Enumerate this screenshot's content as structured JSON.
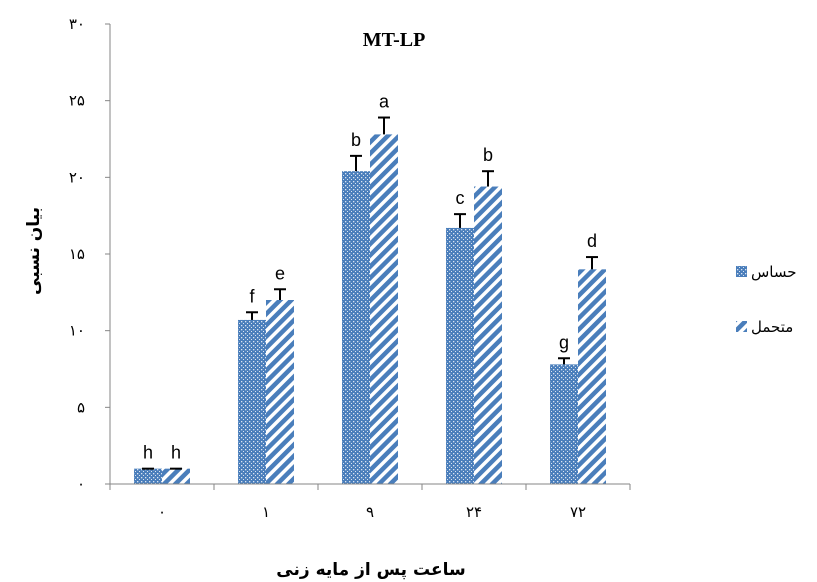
{
  "colors": {
    "series_fill": "#4a7ebb",
    "axis": "#868686",
    "error_bar": "#000000"
  },
  "chart_data": {
    "type": "bar",
    "title": "MT-LP",
    "xlabel": "ساعت پس از مایه زنی",
    "ylabel": "بیان نسبی",
    "ylim": [
      0,
      30
    ],
    "yticks": [
      0,
      5,
      10,
      15,
      20,
      25,
      30
    ],
    "ytick_labels": [
      "۰",
      "۵",
      "۱۰",
      "۱۵",
      "۲۰",
      "۲۵",
      "۳۰"
    ],
    "categories": [
      "۰",
      "۱",
      "۹",
      "۲۴",
      "۷۲"
    ],
    "grid": false,
    "legend_position": "right",
    "series": [
      {
        "name": "حساس",
        "pattern": "dots",
        "values": [
          1.0,
          10.7,
          20.4,
          16.7,
          7.8
        ],
        "errors": [
          0.0,
          0.5,
          1.0,
          0.9,
          0.4
        ],
        "significance": [
          "h",
          "f",
          "b",
          "c",
          "g"
        ]
      },
      {
        "name": "متحمل",
        "pattern": "diagonal-stripes",
        "values": [
          1.0,
          12.0,
          22.8,
          19.4,
          14.0
        ],
        "errors": [
          0.0,
          0.7,
          1.1,
          1.0,
          0.8
        ],
        "significance": [
          "h",
          "e",
          "a",
          "b",
          "d"
        ]
      }
    ]
  }
}
